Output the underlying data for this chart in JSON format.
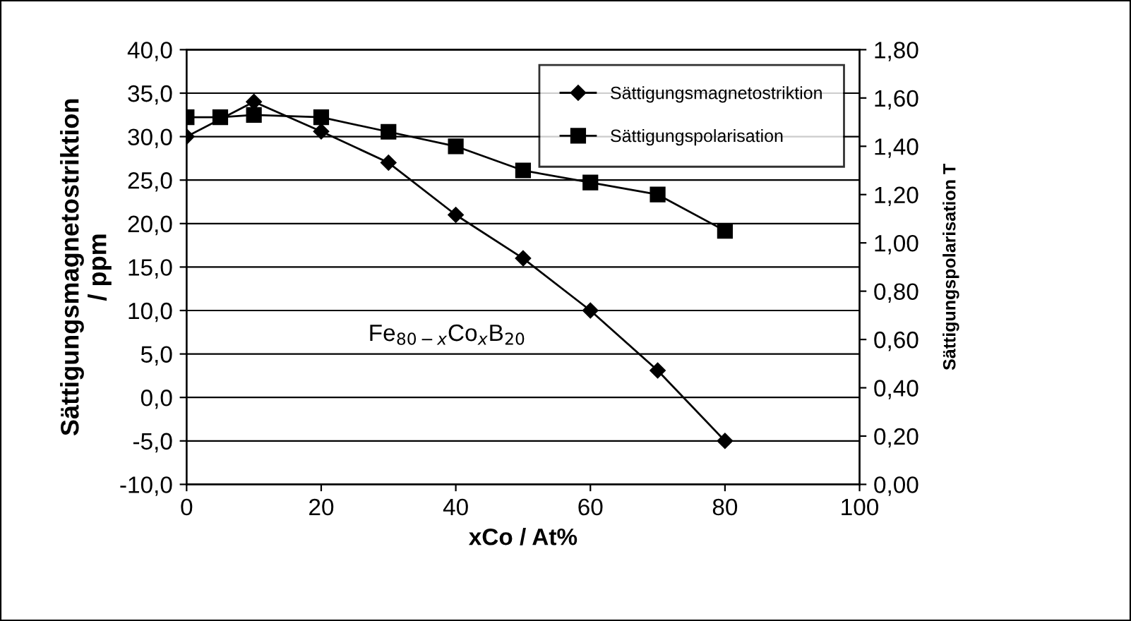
{
  "chart_data": {
    "type": "line",
    "xlabel": "xCo / At%",
    "ylabel": "Sättigungsmagnetostriktion\n/ ppm",
    "y2label": "Sättigungspolarisation T",
    "annotations": [
      "Fe$_{80−x}$Co$_{x}$B$_{20}$"
    ],
    "series": [
      {
        "name": "Sättigungsmagnetostriktion",
        "color": "#000000",
        "marker": "diamond",
        "x": [
          0,
          10,
          20,
          30,
          40,
          50,
          60,
          70,
          80
        ],
        "values": [
          30,
          34,
          30.6,
          27,
          21,
          16,
          10,
          3.1,
          -5
        ]
      },
      {
        "name": "Sättigungspolarisation",
        "color": "#000000",
        "marker": "square",
        "axis": "y2",
        "x": [
          0,
          5,
          10,
          20,
          30,
          40,
          50,
          60,
          70,
          80
        ],
        "values": [
          1.52,
          1.52,
          1.53,
          1.52,
          1.46,
          1.4,
          1.3,
          1.25,
          1.2,
          1.05
        ]
      }
    ],
    "xlim": [
      0,
      100
    ],
    "xticks": [
      0,
      20,
      40,
      60,
      80,
      100
    ],
    "ylim": [
      -10,
      40
    ],
    "yticks": [
      {
        "value": -10,
        "label": "-10,0"
      },
      {
        "value": -5,
        "label": "-5,0"
      },
      {
        "value": 0,
        "label": "0,0"
      },
      {
        "value": 5,
        "label": "5,0"
      },
      {
        "value": 10,
        "label": "10,0"
      },
      {
        "value": 15,
        "label": "15,0"
      },
      {
        "value": 20,
        "label": "20,0"
      },
      {
        "value": 25,
        "label": "25,0"
      },
      {
        "value": 30,
        "label": "30,0"
      },
      {
        "value": 35,
        "label": "35,0"
      },
      {
        "value": 40,
        "label": "40,0"
      }
    ],
    "y2lim": [
      0,
      1.8
    ],
    "y2ticks": [
      {
        "value": 0,
        "label": "0,00"
      },
      {
        "value": 0.2,
        "label": "0,20"
      },
      {
        "value": 0.4,
        "label": "0,40"
      },
      {
        "value": 0.6,
        "label": "0,60"
      },
      {
        "value": 0.8,
        "label": "0,80"
      },
      {
        "value": 1.0,
        "label": "1,00"
      },
      {
        "value": 1.2,
        "label": "1,20"
      },
      {
        "value": 1.4,
        "label": "1,40"
      },
      {
        "value": 1.6,
        "label": "1,60"
      },
      {
        "value": 1.8,
        "label": "1,80"
      }
    ],
    "grid": "y",
    "legend": "top right",
    "line_style": "solid"
  }
}
